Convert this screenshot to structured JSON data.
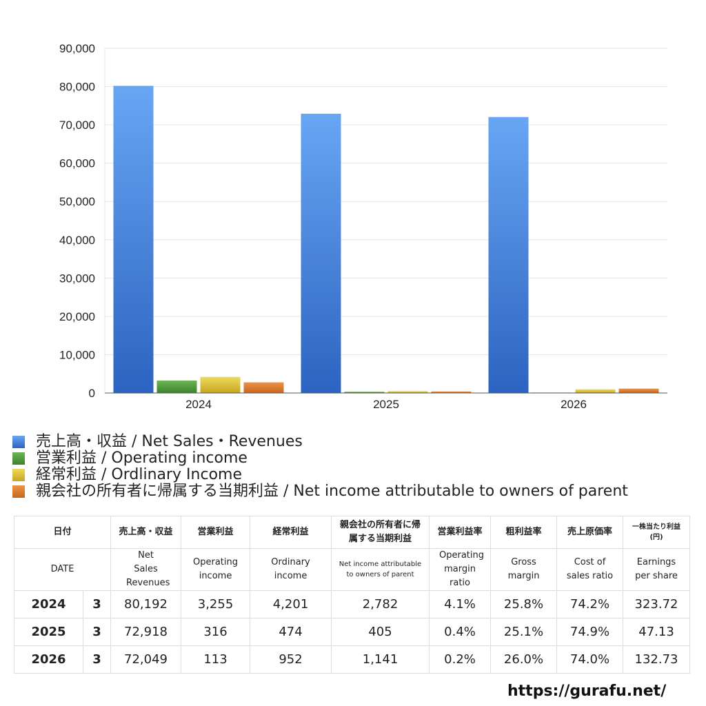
{
  "chart_data": {
    "type": "bar",
    "categories": [
      "2024",
      "2025",
      "2026"
    ],
    "series": [
      {
        "name": "売上高・収益 / Net Sales・Revenues",
        "values": [
          80192,
          72918,
          72049
        ],
        "color": "#4f8be0"
      },
      {
        "name": "営業利益 / Operating income",
        "values": [
          3255,
          316,
          113
        ],
        "color": "#4e9a3c"
      },
      {
        "name": "経常利益 / Ordlinary Income",
        "values": [
          4201,
          474,
          952
        ],
        "color": "#d9bd2e"
      },
      {
        "name": "親会社の所有者に帰属する当期利益 / Net income attributable to owners of parent",
        "values": [
          2782,
          405,
          1141
        ],
        "color": "#d97a2b"
      }
    ],
    "ylim": [
      0,
      90000
    ],
    "yticks": [
      "0",
      "10,000",
      "20,000",
      "30,000",
      "40,000",
      "50,000",
      "60,000",
      "70,000",
      "80,000",
      "90,000"
    ],
    "grid": true,
    "legend_placement": "bottom"
  },
  "table": {
    "header1": [
      "日付",
      "売上高・収益",
      "営業利益",
      "経常利益",
      "親会社の所有者に帰属する当期利益",
      "営業利益率",
      "粗利益率",
      "売上原価率",
      "一株当たり利益(円)"
    ],
    "header2": [
      "DATE",
      "Net Sales Revenues",
      "Operating income",
      "Ordinary income",
      "Net income attributable to owners of parent",
      "Operating margin ratio",
      "Gross margin",
      "Cost of sales ratio",
      "Earnings per share"
    ],
    "rows": [
      {
        "year": "2024",
        "month": "3",
        "values": [
          "80,192",
          "3,255",
          "4,201",
          "2,782",
          "4.1%",
          "25.8%",
          "74.2%",
          "323.72"
        ]
      },
      {
        "year": "2025",
        "month": "3",
        "values": [
          "72,918",
          "316",
          "474",
          "405",
          "0.4%",
          "25.1%",
          "74.9%",
          "47.13"
        ]
      },
      {
        "year": "2026",
        "month": "3",
        "values": [
          "72,049",
          "113",
          "952",
          "1,141",
          "0.2%",
          "26.0%",
          "74.0%",
          "132.73"
        ]
      }
    ]
  },
  "footer": {
    "url": "https://gurafu.net/"
  }
}
